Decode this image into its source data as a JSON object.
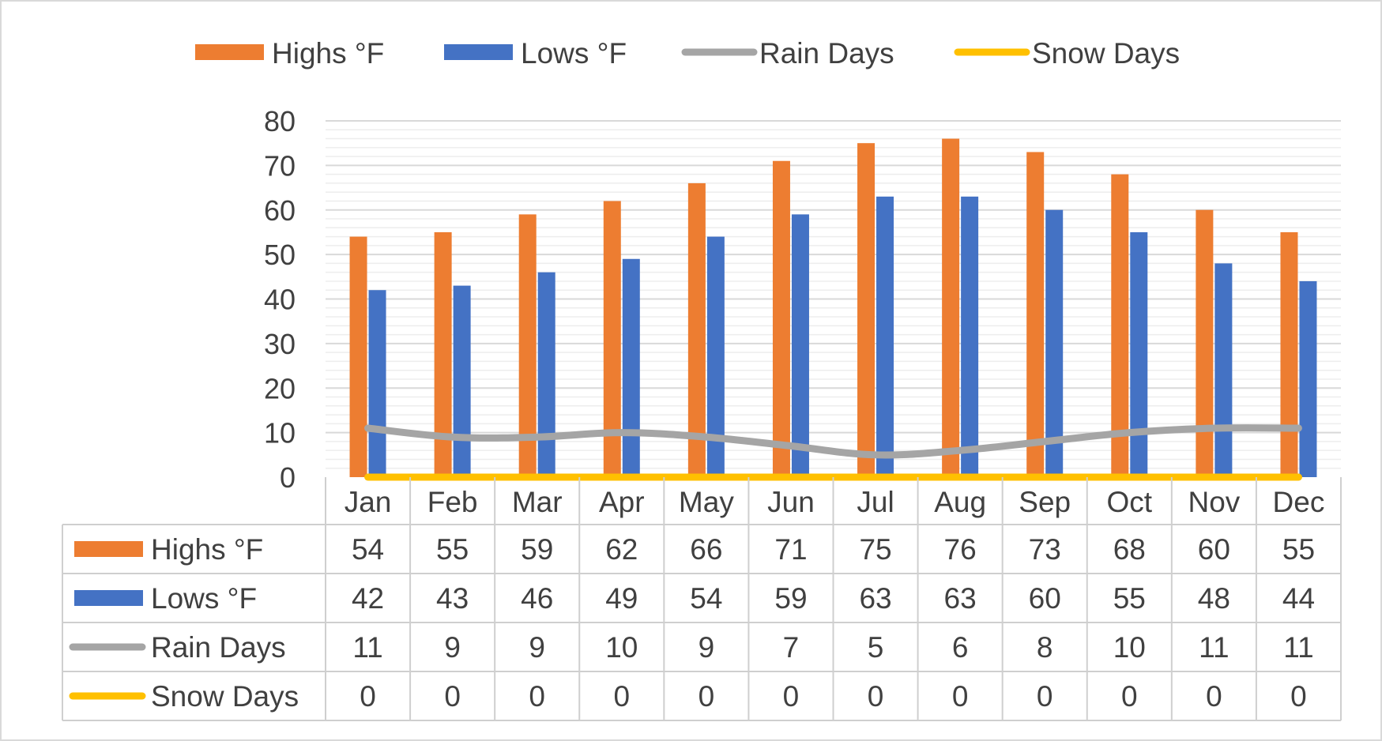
{
  "colors": {
    "highs": "#ED7D31",
    "lows": "#4472C4",
    "rain": "#A5A5A5",
    "snow": "#FFC000",
    "grid": "#D9D9D9",
    "text": "#404040"
  },
  "chart_data": {
    "type": "bar",
    "categories": [
      "Jan",
      "Feb",
      "Mar",
      "Apr",
      "May",
      "Jun",
      "Jul",
      "Aug",
      "Sep",
      "Oct",
      "Nov",
      "Dec"
    ],
    "series": [
      {
        "name": "Highs °F",
        "type": "bar",
        "color": "#ED7D31",
        "values": [
          54,
          55,
          59,
          62,
          66,
          71,
          75,
          76,
          73,
          68,
          60,
          55
        ]
      },
      {
        "name": "Lows °F",
        "type": "bar",
        "color": "#4472C4",
        "values": [
          42,
          43,
          46,
          49,
          54,
          59,
          63,
          63,
          60,
          55,
          48,
          44
        ]
      },
      {
        "name": "Rain Days",
        "type": "line",
        "color": "#A5A5A5",
        "values": [
          11,
          9,
          9,
          10,
          9,
          7,
          5,
          6,
          8,
          10,
          11,
          11
        ]
      },
      {
        "name": "Snow Days",
        "type": "line",
        "color": "#FFC000",
        "values": [
          0,
          0,
          0,
          0,
          0,
          0,
          0,
          0,
          0,
          0,
          0,
          0
        ]
      }
    ],
    "ylim": [
      0,
      80
    ],
    "yticks": [
      0,
      10,
      20,
      30,
      40,
      50,
      60,
      70,
      80
    ],
    "ytick_labels": [
      "0",
      "10",
      "20",
      "30",
      "40",
      "50",
      "60",
      "70",
      "80"
    ],
    "legend_position": "top",
    "grid": true,
    "data_table": true
  }
}
